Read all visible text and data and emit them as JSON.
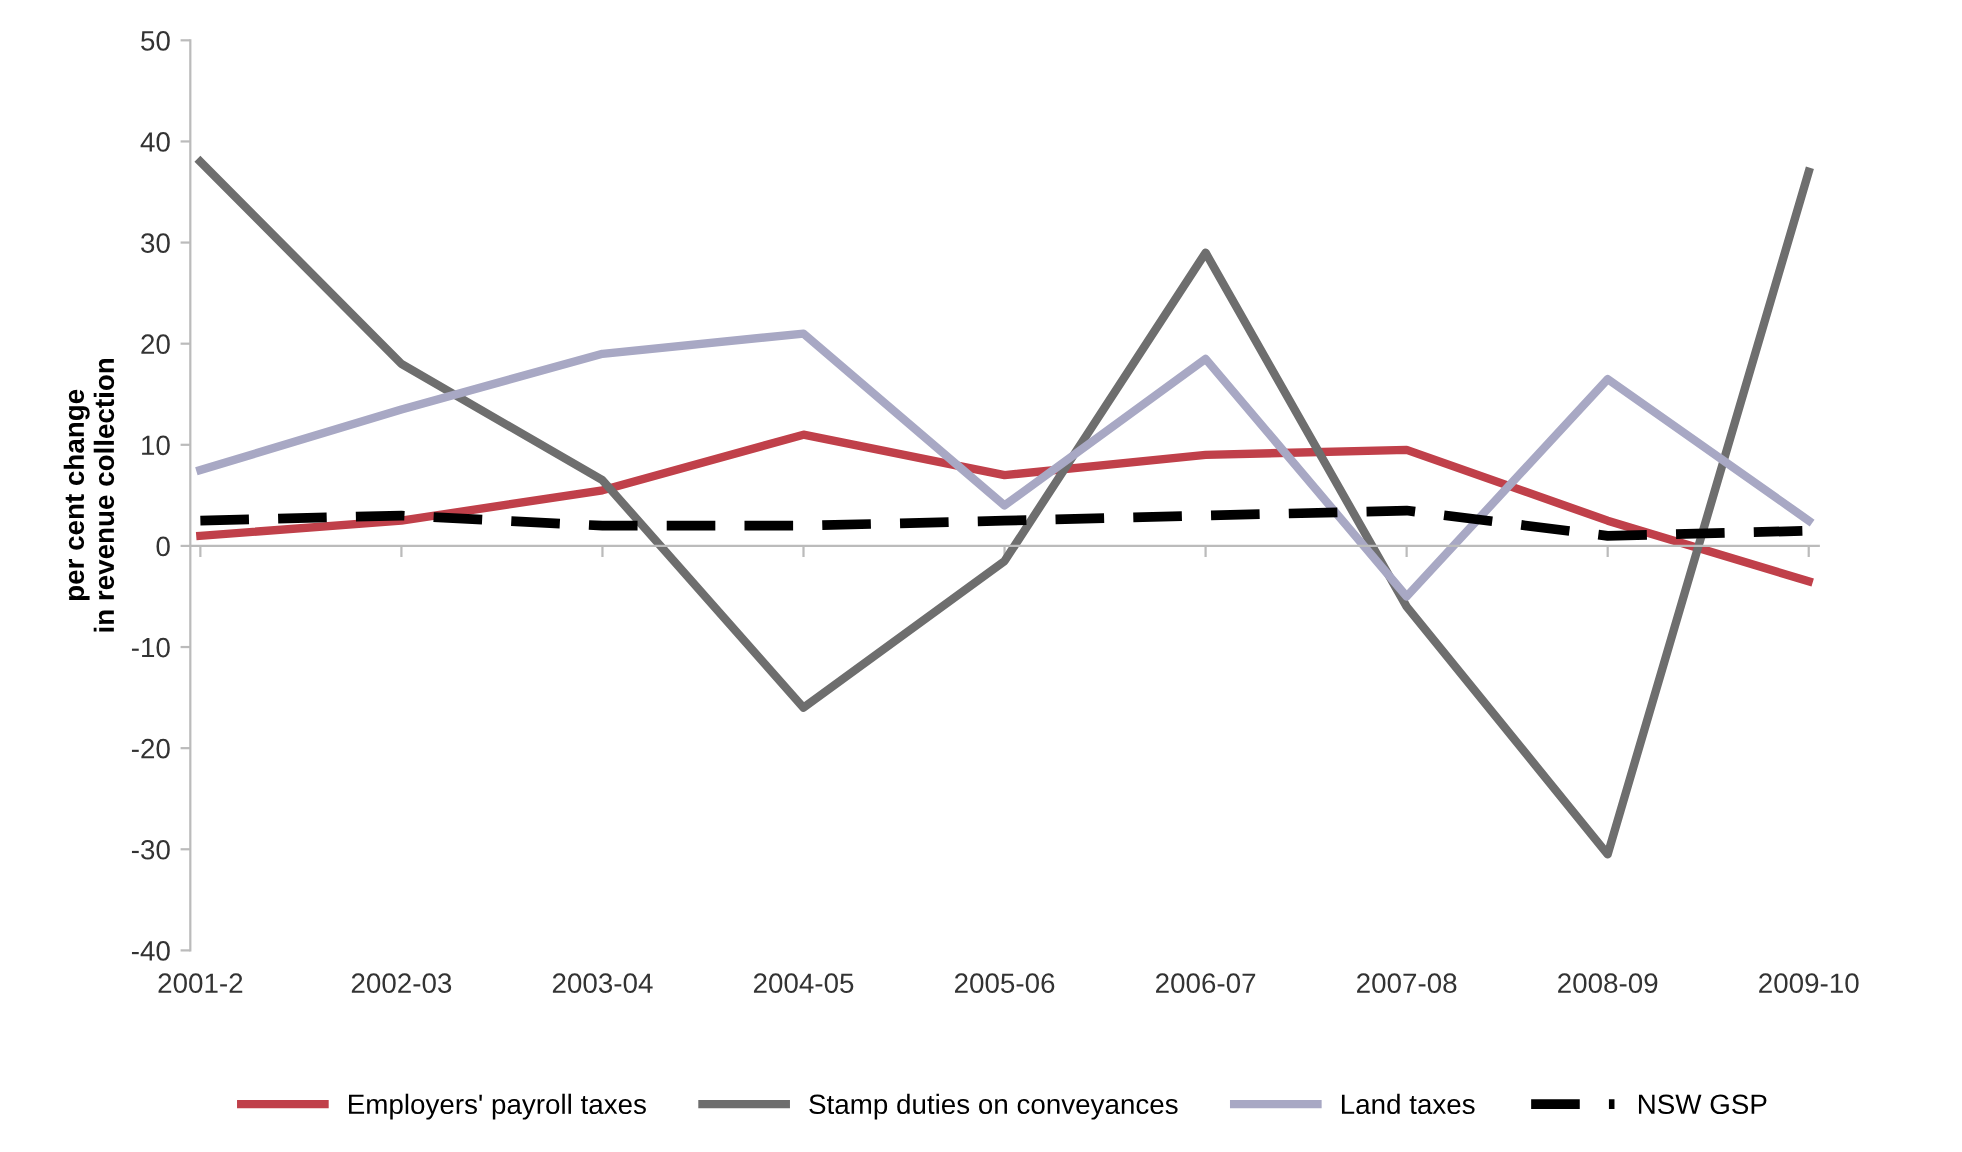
{
  "chart_data": {
    "type": "line",
    "ylabel": "per cent change\nin revenue collection",
    "categories": [
      "2001-2",
      "2002-03",
      "2003-04",
      "2004-05",
      "2005-06",
      "2006-07",
      "2007-08",
      "2008-09",
      "2009-10"
    ],
    "series": [
      {
        "name": "Employers' payroll taxes",
        "color": "#c0404a",
        "values": [
          1,
          2.5,
          5.5,
          11,
          7,
          9,
          9.5,
          2.5,
          -3.5
        ]
      },
      {
        "name": "Stamp duties on conveyances",
        "color": "#6e6e6e",
        "values": [
          38,
          18,
          6.5,
          -16,
          -1.5,
          29,
          -6,
          -30.5,
          37
        ]
      },
      {
        "name": "Land taxes",
        "color": "#a8a8c4",
        "values": [
          7.5,
          13.5,
          19,
          21,
          4,
          18.5,
          -5,
          16.5,
          2.5
        ]
      },
      {
        "name": "NSW GSP",
        "color": "#000000",
        "line_style": "dashed",
        "values": [
          2.5,
          3,
          2,
          2,
          2.5,
          3,
          3.5,
          1,
          1.5
        ]
      }
    ],
    "ylim": [
      -40,
      50
    ],
    "yticks": [
      -40,
      -30,
      -20,
      -10,
      0,
      10,
      20,
      30,
      40,
      50
    ],
    "legend": "bottom",
    "marker": "none"
  }
}
